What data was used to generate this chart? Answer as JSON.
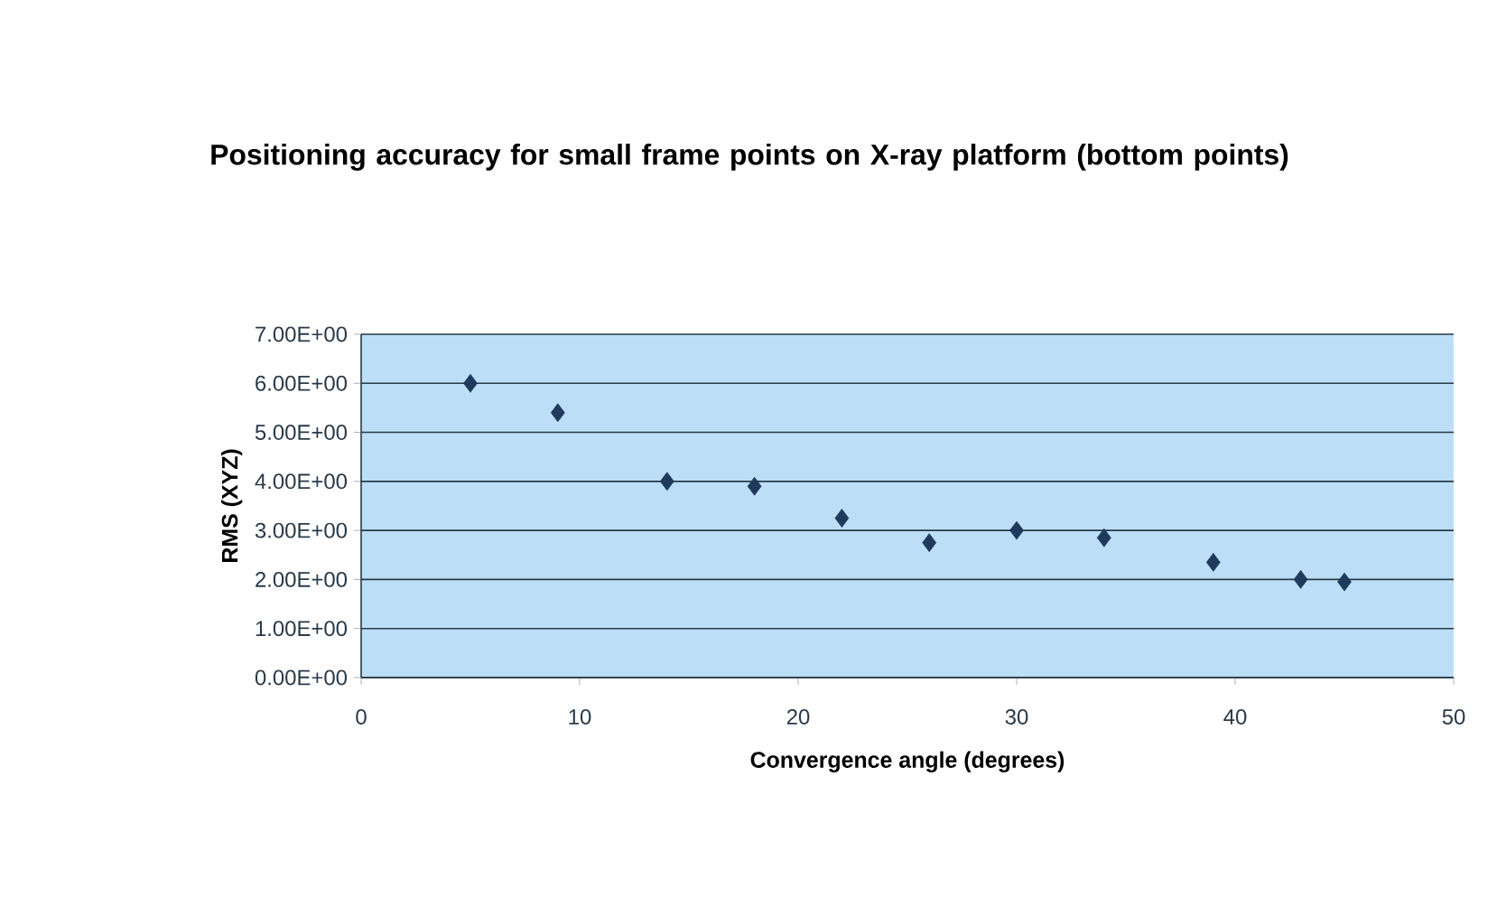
{
  "chart_data": {
    "type": "scatter",
    "title": "Positioning accuracy for small frame points on X-ray platform (bottom points)",
    "xlabel": "Convergence angle (degrees)",
    "ylabel": "RMS (XYZ)",
    "series": [
      {
        "color": "#1f3a5c",
        "x": [
          5,
          9,
          14,
          18,
          22,
          26,
          30,
          34,
          39,
          43,
          45
        ],
        "values": [
          6.0,
          5.4,
          4.0,
          3.9,
          3.25,
          2.75,
          3.0,
          2.85,
          2.35,
          2.0,
          1.95
        ]
      }
    ],
    "xlim": [
      0,
      50
    ],
    "xticks": [
      0,
      10,
      20,
      30,
      40,
      50
    ],
    "ylim": [
      0,
      7
    ],
    "yticks": [
      {
        "value": 0,
        "label": "0.00E+00"
      },
      {
        "value": 1,
        "label": "1.00E+00"
      },
      {
        "value": 2,
        "label": "2.00E+00"
      },
      {
        "value": 3,
        "label": "3.00E+00"
      },
      {
        "value": 4,
        "label": "4.00E+00"
      },
      {
        "value": 5,
        "label": "5.00E+00"
      },
      {
        "value": 6,
        "label": "6.00E+00"
      },
      {
        "value": 7,
        "label": "7.00E+00"
      }
    ],
    "grid": "y",
    "marker": "diamond"
  }
}
